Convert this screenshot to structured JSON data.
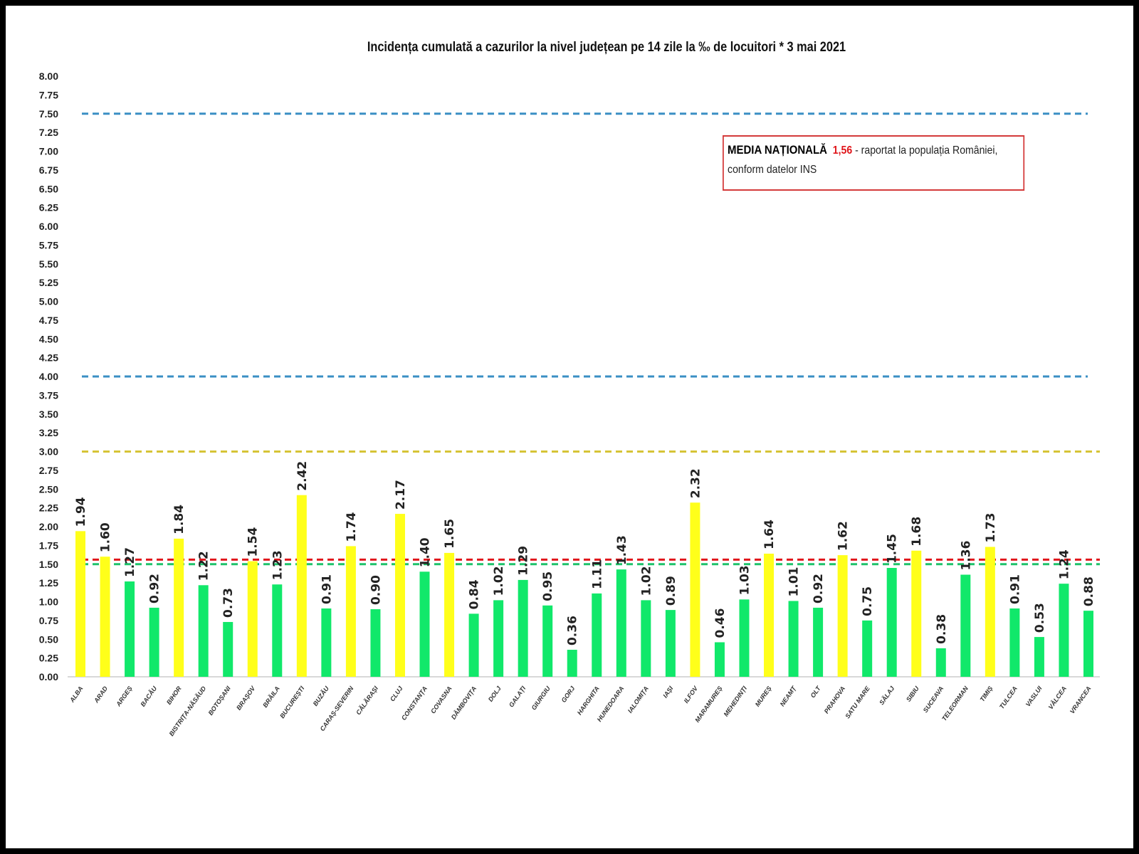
{
  "chart_data": {
    "type": "bar",
    "title": "Incidența cumulată a cazurilor la nivel județean pe 14 zile la ‰ de locuitori *   3 mai 2021",
    "xlabel": "",
    "ylabel": "",
    "ylim": [
      0,
      8
    ],
    "ytick_step": 0.25,
    "grid": false,
    "categories": [
      "ALBA",
      "ARAD",
      "ARGEȘ",
      "BACĂU",
      "BIHOR",
      "BISTRIȚA-NĂSĂUD",
      "BOTOȘANI",
      "BRAȘOV",
      "BRĂILA",
      "BUCUREȘTI",
      "BUZĂU",
      "CARAȘ-SEVERIN",
      "CĂLĂRAȘI",
      "CLUJ",
      "CONSTANȚA",
      "COVASNA",
      "DÂMBOVIȚA",
      "DOLJ",
      "GALAȚI",
      "GIURGIU",
      "GORJ",
      "HARGHITA",
      "HUNEDOARA",
      "IALOMIȚA",
      "IAȘI",
      "ILFOV",
      "MARAMUREȘ",
      "MEHEDINȚI",
      "MUREȘ",
      "NEAMȚ",
      "OLT",
      "PRAHOVA",
      "SATU MARE",
      "SĂLAJ",
      "SIBIU",
      "SUCEAVA",
      "TELEORMAN",
      "TIMIȘ",
      "TULCEA",
      "VASLUI",
      "VÂLCEA",
      "VRANCEA"
    ],
    "values": [
      1.94,
      1.6,
      1.27,
      0.92,
      1.84,
      1.22,
      0.73,
      1.54,
      1.23,
      2.42,
      0.91,
      1.74,
      0.9,
      2.17,
      1.4,
      1.65,
      0.84,
      1.02,
      1.29,
      0.95,
      0.36,
      1.11,
      1.43,
      1.02,
      0.89,
      2.32,
      0.46,
      1.03,
      1.64,
      1.01,
      0.92,
      1.62,
      0.75,
      1.45,
      1.68,
      0.38,
      1.36,
      1.73,
      0.91,
      0.53,
      1.24,
      0.88
    ],
    "color_threshold": 1.5,
    "colors": {
      "above": "#ffff1a",
      "below": "#11e86a"
    },
    "reference_lines": [
      {
        "value": 7.5,
        "color": "#3a8fc4",
        "style": "dashed"
      },
      {
        "value": 4.0,
        "color": "#3a8fc4",
        "style": "dashed"
      },
      {
        "value": 3.0,
        "color": "#d6c437",
        "style": "dashed"
      },
      {
        "value": 1.56,
        "color": "#e0161b",
        "style": "dashed"
      },
      {
        "value": 1.5,
        "color": "#1ec26a",
        "style": "dashed"
      }
    ]
  },
  "legend": {
    "label": "MEDIA NAȚIONALĂ",
    "value": "1,56",
    "text": " - raportat la populația României,",
    "text2": "conform datelor INS"
  }
}
